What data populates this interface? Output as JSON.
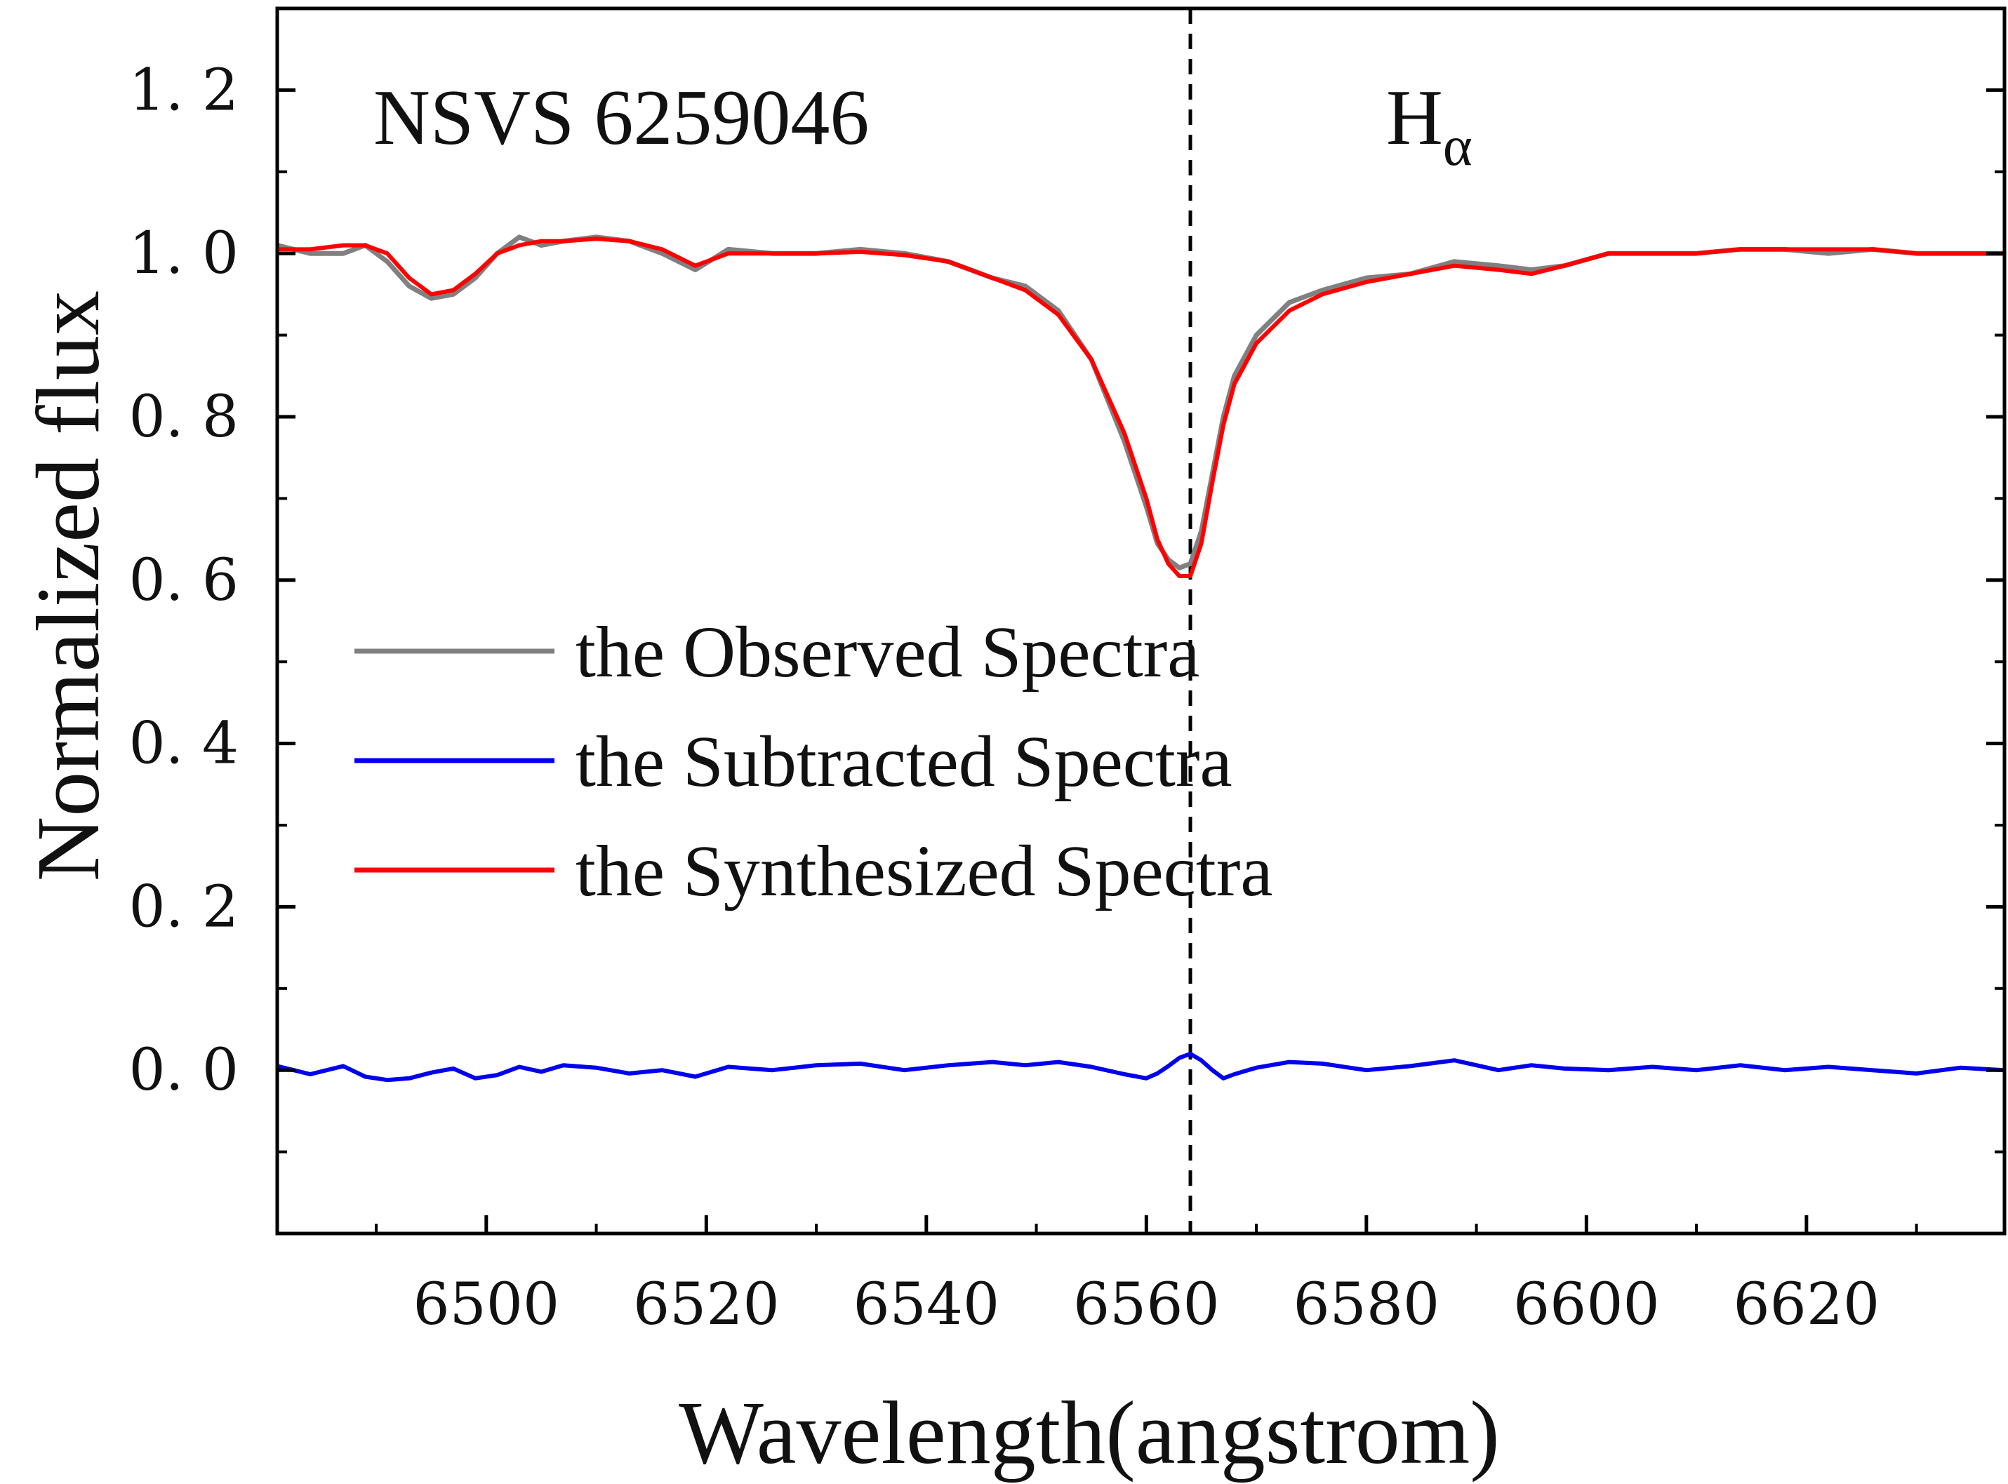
{
  "chart_data": {
    "type": "line",
    "title": "",
    "xlabel": "Wavelength(angstrom)",
    "ylabel": "Normalized flux",
    "xlim": [
      6481,
      6638
    ],
    "ylim": [
      -0.2,
      1.3
    ],
    "x_ticks": [
      6500,
      6520,
      6540,
      6560,
      6580,
      6600,
      6620
    ],
    "x_tick_labels": [
      "6500",
      "6520",
      "6540",
      "6560",
      "6580",
      "6600",
      "6620"
    ],
    "y_ticks": [
      0.0,
      0.2,
      0.4,
      0.6,
      0.8,
      1.0,
      1.2
    ],
    "y_tick_labels": [
      "0. 0",
      "0. 2",
      "0. 4",
      "0. 6",
      "0. 8",
      "1. 0",
      "1. 2"
    ],
    "grid": false,
    "legend_placement": "center-left",
    "annotations": {
      "object_name": "NSVS 6259046",
      "line_label_main": "H",
      "line_label_sub": "α"
    },
    "reference_line": {
      "x": 6564,
      "style": "dashed",
      "color": "#000000"
    },
    "x": [
      6481,
      6484,
      6487,
      6489,
      6491,
      6493,
      6495,
      6497,
      6499,
      6501,
      6503,
      6505,
      6507,
      6510,
      6513,
      6516,
      6519,
      6522,
      6526,
      6530,
      6534,
      6538,
      6542,
      6546,
      6549,
      6552,
      6555,
      6558,
      6560,
      6561,
      6562,
      6563,
      6564,
      6565,
      6566,
      6567,
      6568,
      6570,
      6573,
      6576,
      6580,
      6584,
      6588,
      6592,
      6595,
      6598,
      6602,
      6606,
      6610,
      6614,
      6618,
      6622,
      6626,
      6630,
      6634,
      6638
    ],
    "series": [
      {
        "name": "the Observed Spectra",
        "color": "#808080",
        "values": [
          1.01,
          1.0,
          1.0,
          1.01,
          0.99,
          0.96,
          0.945,
          0.95,
          0.97,
          1.0,
          1.02,
          1.01,
          1.015,
          1.02,
          1.015,
          1.0,
          0.98,
          1.005,
          1.0,
          1.0,
          1.005,
          1.0,
          0.99,
          0.97,
          0.96,
          0.93,
          0.87,
          0.77,
          0.69,
          0.645,
          0.625,
          0.615,
          0.62,
          0.66,
          0.73,
          0.8,
          0.85,
          0.9,
          0.94,
          0.955,
          0.97,
          0.975,
          0.99,
          0.985,
          0.98,
          0.985,
          1.0,
          1.0,
          1.0,
          1.005,
          1.005,
          1.0,
          1.005,
          1.0,
          1.0,
          1.0
        ]
      },
      {
        "name": "the Subtracted Spectra",
        "color": "#0000ee",
        "values": [
          0.005,
          -0.005,
          0.005,
          -0.008,
          -0.012,
          -0.01,
          -0.003,
          0.002,
          -0.01,
          -0.006,
          0.004,
          -0.002,
          0.006,
          0.003,
          -0.004,
          0.0,
          -0.008,
          0.004,
          0.0,
          0.006,
          0.008,
          0.0,
          0.006,
          0.01,
          0.006,
          0.01,
          0.004,
          -0.005,
          -0.01,
          -0.004,
          0.005,
          0.015,
          0.02,
          0.012,
          0.0,
          -0.01,
          -0.005,
          0.003,
          0.01,
          0.008,
          0.0,
          0.005,
          0.012,
          0.0,
          0.006,
          0.002,
          0.0,
          0.004,
          0.0,
          0.006,
          0.0,
          0.004,
          0.0,
          -0.004,
          0.003,
          0.0
        ]
      },
      {
        "name": "the Synthesized Spectra",
        "color": "#ff0000",
        "values": [
          1.005,
          1.005,
          1.01,
          1.01,
          1.0,
          0.97,
          0.95,
          0.955,
          0.975,
          1.0,
          1.01,
          1.015,
          1.015,
          1.018,
          1.015,
          1.005,
          0.985,
          1.0,
          1.0,
          1.0,
          1.002,
          0.998,
          0.99,
          0.97,
          0.955,
          0.925,
          0.87,
          0.78,
          0.7,
          0.65,
          0.62,
          0.605,
          0.605,
          0.645,
          0.72,
          0.79,
          0.84,
          0.89,
          0.93,
          0.95,
          0.965,
          0.975,
          0.985,
          0.98,
          0.975,
          0.985,
          1.0,
          1.0,
          1.0,
          1.005,
          1.005,
          1.005,
          1.005,
          1.0,
          1.0,
          1.0
        ]
      }
    ]
  }
}
